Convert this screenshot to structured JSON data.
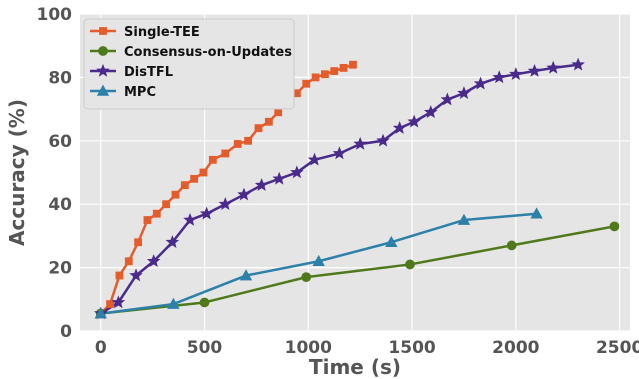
{
  "chart_data": {
    "type": "line",
    "xlabel": "Time (s)",
    "ylabel": "Accuracy (%)",
    "xlim": [
      -100,
      2550
    ],
    "ylim": [
      0,
      100
    ],
    "x_ticks": [
      0,
      500,
      1000,
      1500,
      2000,
      2500
    ],
    "y_ticks": [
      0,
      20,
      40,
      60,
      80,
      100
    ],
    "grid": true,
    "legend_position": "top-left",
    "series": [
      {
        "name": "Single-TEE",
        "color": "#E45C2B",
        "marker": "square",
        "points": [
          [
            0,
            5.5
          ],
          [
            45,
            8.5
          ],
          [
            90,
            17.5
          ],
          [
            135,
            22
          ],
          [
            180,
            28
          ],
          [
            225,
            35
          ],
          [
            270,
            37
          ],
          [
            315,
            40
          ],
          [
            360,
            43
          ],
          [
            405,
            46
          ],
          [
            450,
            48
          ],
          [
            495,
            50
          ],
          [
            540,
            54
          ],
          [
            600,
            56
          ],
          [
            660,
            59
          ],
          [
            710,
            60
          ],
          [
            760,
            64
          ],
          [
            810,
            66
          ],
          [
            855,
            69
          ],
          [
            900,
            73
          ],
          [
            945,
            75
          ],
          [
            990,
            78
          ],
          [
            1035,
            80
          ],
          [
            1080,
            81
          ],
          [
            1125,
            82
          ],
          [
            1170,
            83
          ],
          [
            1215,
            84
          ]
        ]
      },
      {
        "name": "Consensus-on-Updates",
        "color": "#4F7A1C",
        "marker": "circle",
        "points": [
          [
            0,
            5.5
          ],
          [
            500,
            9
          ],
          [
            990,
            17
          ],
          [
            1490,
            21
          ],
          [
            1980,
            27
          ],
          [
            2475,
            33
          ]
        ]
      },
      {
        "name": "DisTFL",
        "color": "#4A2A8A",
        "marker": "star",
        "points": [
          [
            0,
            5.5
          ],
          [
            85,
            9
          ],
          [
            170,
            17.5
          ],
          [
            255,
            22
          ],
          [
            345,
            28
          ],
          [
            430,
            35
          ],
          [
            510,
            37
          ],
          [
            600,
            40
          ],
          [
            690,
            43
          ],
          [
            775,
            46
          ],
          [
            860,
            48
          ],
          [
            945,
            50
          ],
          [
            1030,
            54
          ],
          [
            1150,
            56
          ],
          [
            1250,
            59
          ],
          [
            1360,
            60
          ],
          [
            1440,
            64
          ],
          [
            1510,
            66
          ],
          [
            1590,
            69
          ],
          [
            1670,
            73
          ],
          [
            1750,
            75
          ],
          [
            1830,
            78
          ],
          [
            1920,
            80
          ],
          [
            2000,
            81
          ],
          [
            2090,
            82
          ],
          [
            2180,
            83
          ],
          [
            2300,
            84
          ]
        ]
      },
      {
        "name": "MPC",
        "color": "#2D80A8",
        "marker": "triangle",
        "points": [
          [
            0,
            5.5
          ],
          [
            350,
            8.5
          ],
          [
            700,
            17.5
          ],
          [
            1050,
            22
          ],
          [
            1400,
            28
          ],
          [
            1750,
            35
          ],
          [
            2100,
            37
          ]
        ]
      }
    ]
  }
}
